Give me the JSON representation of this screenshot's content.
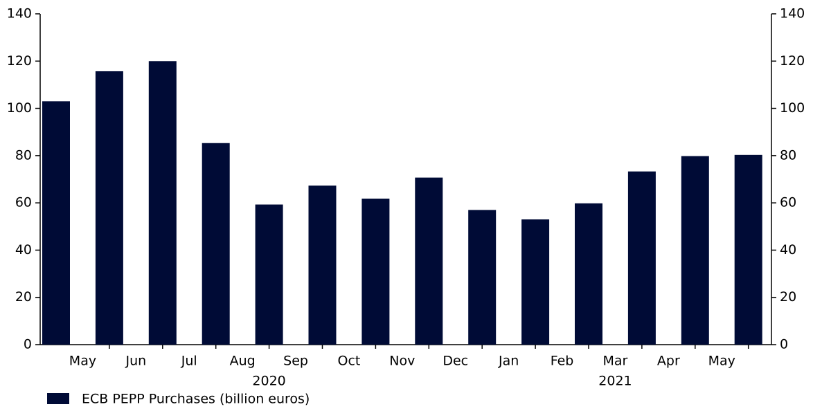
{
  "chart_data": {
    "type": "bar",
    "categories": [
      "May",
      "Jun",
      "Jul",
      "Aug",
      "Sep",
      "Oct",
      "Nov",
      "Dec",
      "Jan",
      "Feb",
      "Mar",
      "Apr",
      "May",
      null
    ],
    "groups": [
      {
        "label": "2020",
        "first": 0,
        "last": 7
      },
      {
        "label": "2021",
        "first": 8,
        "last": 12
      }
    ],
    "series": [
      {
        "name": "ECB PEPP Purchases (billion euros)",
        "color": "#000b36",
        "values": [
          103,
          115.7,
          120,
          85.3,
          59.3,
          67.3,
          61.8,
          70.7,
          57,
          53,
          59.8,
          73.3,
          79.8,
          80.3
        ]
      }
    ],
    "ylim": [
      0,
      140
    ],
    "yticks": [
      0,
      20,
      40,
      60,
      80,
      100,
      120,
      140
    ],
    "y2lim": [
      0,
      140
    ],
    "y2ticks": [
      0,
      20,
      40,
      60,
      80,
      100,
      120,
      140
    ],
    "legend": "bottom-left"
  }
}
